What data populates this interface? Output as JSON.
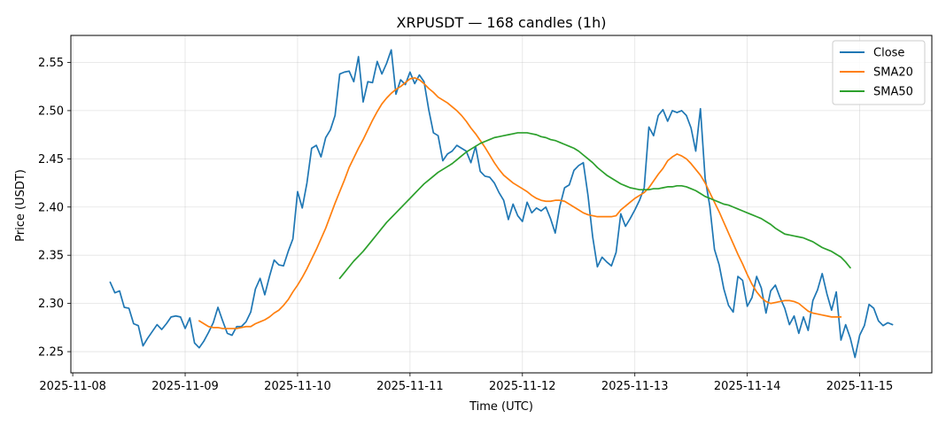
{
  "chart_data": {
    "type": "line",
    "title": "XRPUSDT — 168 candles (1h)",
    "xlabel": "Time (UTC)",
    "ylabel": "Price (USDT)",
    "x_start": "2025-11-08 08:00",
    "x_end": "2025-11-15 07:00",
    "x_interval": "1h",
    "xlim": [
      "2025-11-07 23:36",
      "2025-11-15 15:24"
    ],
    "ylim": [
      2.228,
      2.578
    ],
    "x_ticks": [
      "2025-11-08",
      "2025-11-09",
      "2025-11-10",
      "2025-11-11",
      "2025-11-12",
      "2025-11-13",
      "2025-11-14",
      "2025-11-15"
    ],
    "y_ticks": [
      2.25,
      2.3,
      2.35,
      2.4,
      2.45,
      2.5,
      2.55
    ],
    "y_tick_labels": [
      "2.25",
      "2.30",
      "2.35",
      "2.40",
      "2.45",
      "2.50",
      "2.55"
    ],
    "grid": true,
    "legend_position": "top-right",
    "series": [
      {
        "name": "Close",
        "color": "#1f77b4",
        "values": [
          2.322,
          2.311,
          2.313,
          2.296,
          2.295,
          2.279,
          2.277,
          2.256,
          2.264,
          2.271,
          2.278,
          2.273,
          2.279,
          2.286,
          2.287,
          2.286,
          2.274,
          2.285,
          2.259,
          2.254,
          2.261,
          2.27,
          2.28,
          2.296,
          2.282,
          2.269,
          2.267,
          2.276,
          2.276,
          2.281,
          2.291,
          2.315,
          2.326,
          2.309,
          2.328,
          2.345,
          2.34,
          2.339,
          2.354,
          2.367,
          2.416,
          2.399,
          2.425,
          2.461,
          2.464,
          2.452,
          2.472,
          2.48,
          2.495,
          2.538,
          2.54,
          2.541,
          2.53,
          2.556,
          2.509,
          2.53,
          2.529,
          2.551,
          2.538,
          2.549,
          2.563,
          2.517,
          2.532,
          2.527,
          2.54,
          2.528,
          2.537,
          2.53,
          2.501,
          2.477,
          2.474,
          2.448,
          2.455,
          2.458,
          2.464,
          2.461,
          2.458,
          2.446,
          2.463,
          2.437,
          2.432,
          2.431,
          2.425,
          2.415,
          2.407,
          2.387,
          2.403,
          2.391,
          2.385,
          2.405,
          2.394,
          2.399,
          2.396,
          2.4,
          2.388,
          2.373,
          2.401,
          2.42,
          2.423,
          2.438,
          2.443,
          2.446,
          2.412,
          2.369,
          2.338,
          2.348,
          2.343,
          2.339,
          2.353,
          2.393,
          2.38,
          2.388,
          2.397,
          2.407,
          2.42,
          2.483,
          2.474,
          2.495,
          2.501,
          2.489,
          2.5,
          2.498,
          2.5,
          2.495,
          2.482,
          2.458,
          2.502,
          2.43,
          2.401,
          2.356,
          2.34,
          2.315,
          2.298,
          2.291,
          2.328,
          2.324,
          2.297,
          2.306,
          2.328,
          2.316,
          2.29,
          2.313,
          2.319,
          2.306,
          2.295,
          2.278,
          2.287,
          2.269,
          2.286,
          2.272,
          2.303,
          2.314,
          2.331,
          2.31,
          2.293,
          2.312,
          2.262,
          2.278,
          2.264,
          2.244,
          2.267,
          2.277,
          2.299,
          2.295,
          2.282,
          2.277,
          2.28,
          2.278
        ]
      },
      {
        "name": "SMA20",
        "color": "#ff7f0e",
        "values": [
          null,
          null,
          null,
          null,
          null,
          null,
          null,
          null,
          null,
          null,
          null,
          null,
          null,
          null,
          null,
          null,
          null,
          null,
          null,
          2.282,
          2.279,
          2.276,
          2.275,
          2.275,
          2.274,
          2.274,
          2.274,
          2.274,
          2.275,
          2.276,
          2.276,
          2.279,
          2.281,
          2.283,
          2.286,
          2.29,
          2.293,
          2.298,
          2.304,
          2.312,
          2.319,
          2.327,
          2.336,
          2.346,
          2.356,
          2.367,
          2.378,
          2.391,
          2.404,
          2.416,
          2.428,
          2.441,
          2.451,
          2.461,
          2.47,
          2.48,
          2.49,
          2.499,
          2.507,
          2.513,
          2.518,
          2.522,
          2.525,
          2.529,
          2.533,
          2.534,
          2.532,
          2.528,
          2.523,
          2.519,
          2.514,
          2.511,
          2.508,
          2.504,
          2.5,
          2.495,
          2.489,
          2.482,
          2.476,
          2.469,
          2.462,
          2.454,
          2.446,
          2.439,
          2.433,
          2.429,
          2.425,
          2.422,
          2.419,
          2.416,
          2.412,
          2.409,
          2.407,
          2.406,
          2.406,
          2.407,
          2.407,
          2.406,
          2.403,
          2.4,
          2.397,
          2.394,
          2.392,
          2.391,
          2.39,
          2.39,
          2.39,
          2.39,
          2.391,
          2.397,
          2.401,
          2.405,
          2.409,
          2.412,
          2.415,
          2.42,
          2.427,
          2.434,
          2.44,
          2.448,
          2.452,
          2.455,
          2.453,
          2.45,
          2.445,
          2.439,
          2.433,
          2.425,
          2.415,
          2.405,
          2.395,
          2.384,
          2.373,
          2.362,
          2.351,
          2.341,
          2.33,
          2.32,
          2.312,
          2.306,
          2.302,
          2.3,
          2.301,
          2.302,
          2.303,
          2.303,
          2.302,
          2.3,
          2.296,
          2.292,
          2.29,
          2.289,
          2.288,
          2.287,
          2.286,
          2.286,
          2.286
        ]
      },
      {
        "name": "SMA50",
        "color": "#2ca02c",
        "values": [
          null,
          null,
          null,
          null,
          null,
          null,
          null,
          null,
          null,
          null,
          null,
          null,
          null,
          null,
          null,
          null,
          null,
          null,
          null,
          null,
          null,
          null,
          null,
          null,
          null,
          null,
          null,
          null,
          null,
          null,
          null,
          null,
          null,
          null,
          null,
          null,
          null,
          null,
          null,
          null,
          null,
          null,
          null,
          null,
          null,
          null,
          null,
          null,
          null,
          2.326,
          2.332,
          2.338,
          2.344,
          2.349,
          2.354,
          2.36,
          2.366,
          2.372,
          2.378,
          2.384,
          2.389,
          2.394,
          2.399,
          2.404,
          2.409,
          2.414,
          2.419,
          2.424,
          2.428,
          2.432,
          2.436,
          2.439,
          2.442,
          2.445,
          2.449,
          2.453,
          2.457,
          2.46,
          2.463,
          2.466,
          2.468,
          2.47,
          2.472,
          2.473,
          2.474,
          2.475,
          2.476,
          2.477,
          2.477,
          2.477,
          2.476,
          2.475,
          2.473,
          2.472,
          2.47,
          2.469,
          2.467,
          2.465,
          2.463,
          2.461,
          2.458,
          2.454,
          2.45,
          2.446,
          2.441,
          2.437,
          2.433,
          2.43,
          2.427,
          2.424,
          2.422,
          2.42,
          2.419,
          2.418,
          2.418,
          2.418,
          2.419,
          2.419,
          2.42,
          2.421,
          2.421,
          2.422,
          2.422,
          2.421,
          2.419,
          2.417,
          2.414,
          2.411,
          2.409,
          2.407,
          2.405,
          2.403,
          2.402,
          2.4,
          2.398,
          2.396,
          2.394,
          2.392,
          2.39,
          2.388,
          2.385,
          2.382,
          2.378,
          2.375,
          2.372,
          2.371,
          2.37,
          2.369,
          2.368,
          2.366,
          2.364,
          2.361,
          2.358,
          2.356,
          2.354,
          2.351,
          2.348,
          2.343,
          2.337
        ]
      }
    ]
  }
}
